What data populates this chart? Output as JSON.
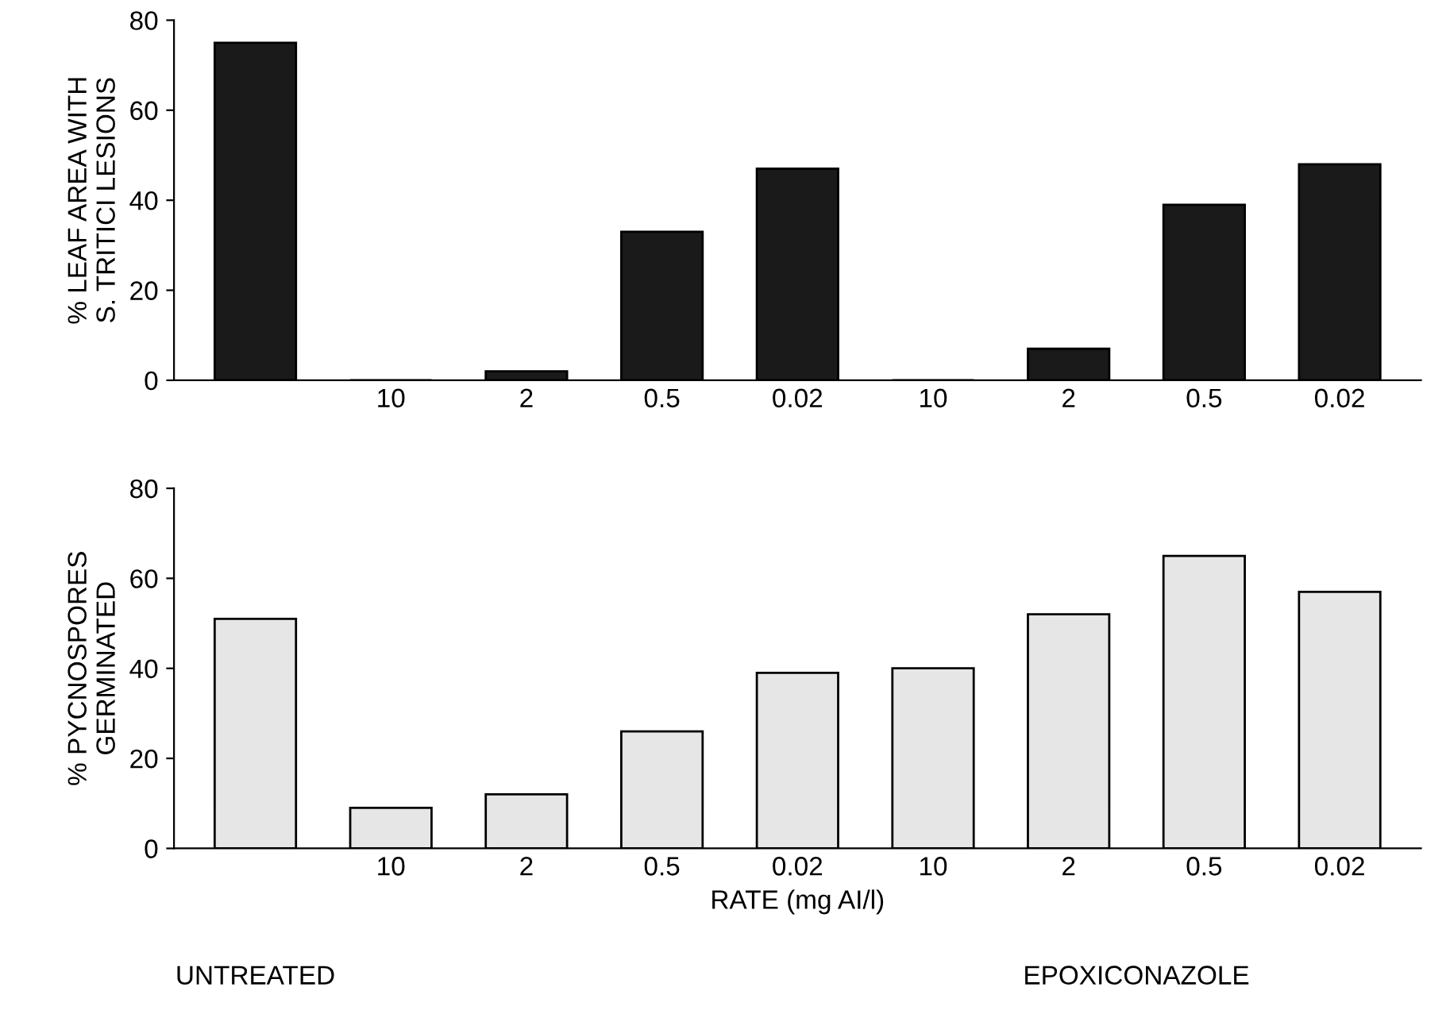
{
  "chart_data": [
    {
      "type": "bar",
      "ylabel": "% LEAF AREA WITH\nS. TRITICI LESIONS",
      "categories": [
        null,
        "10",
        "2",
        "0.5",
        "0.02",
        "10",
        "2",
        "0.5",
        "0.02"
      ],
      "values": [
        75,
        0,
        2,
        33,
        47,
        0,
        7,
        39,
        48
      ],
      "color": "#1a1a1a",
      "ylim": [
        0,
        80
      ],
      "yticks": [
        0,
        20,
        40,
        60,
        80
      ],
      "grid": false,
      "legend": false
    },
    {
      "type": "bar",
      "ylabel": "% PYCNOSPORES\nGERMINATED",
      "xlabel": "RATE (mg AI/l)",
      "categories": [
        null,
        "10",
        "2",
        "0.5",
        "0.02",
        "10",
        "2",
        "0.5",
        "0.02"
      ],
      "values": [
        51,
        9,
        12,
        26,
        39,
        40,
        52,
        65,
        57
      ],
      "color": "#e6e6e6",
      "ylim": [
        0,
        80
      ],
      "yticks": [
        0,
        20,
        40,
        60,
        80
      ],
      "grid": false,
      "legend": false,
      "annotations": [
        "UNTREATED",
        "EPOXICONAZOLE"
      ]
    }
  ]
}
